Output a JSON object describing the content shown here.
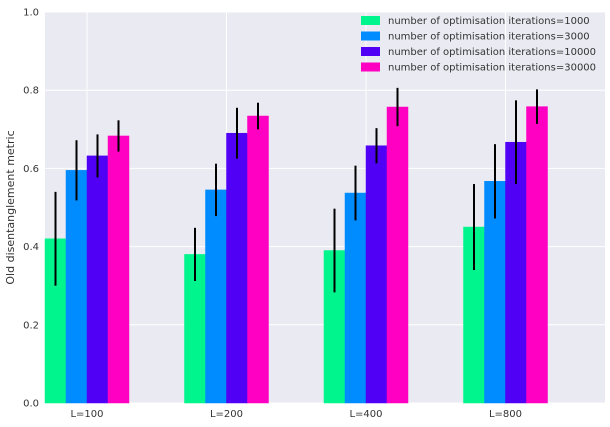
{
  "chart_data": {
    "type": "bar",
    "title": "",
    "xlabel": "",
    "ylabel": "Old disentanglement metric",
    "ylim": [
      0,
      1.0
    ],
    "yticks": [
      "0.0",
      "0.2",
      "0.4",
      "0.6",
      "0.8",
      "1.0"
    ],
    "ytick_values": [
      0,
      0.2,
      0.4,
      0.6,
      0.8,
      1.0
    ],
    "grid": true,
    "legend_position": "top-right",
    "categories": [
      "L=100",
      "L=200",
      "L=400",
      "L=800"
    ],
    "series": [
      {
        "name": "number of optimisation iterations=1000",
        "color": "#00f58c",
        "values": [
          0.42,
          0.38,
          0.39,
          0.45
        ],
        "errors": [
          0.12,
          0.068,
          0.107,
          0.11
        ]
      },
      {
        "name": "number of optimisation iterations=3000",
        "color": "#008cff",
        "values": [
          0.595,
          0.545,
          0.537,
          0.567
        ],
        "errors": [
          0.077,
          0.067,
          0.07,
          0.095
        ]
      },
      {
        "name": "number of optimisation iterations=10000",
        "color": "#5000f5",
        "values": [
          0.632,
          0.69,
          0.658,
          0.667
        ],
        "errors": [
          0.055,
          0.065,
          0.045,
          0.107
        ]
      },
      {
        "name": "number of optimisation iterations=30000",
        "color": "#ff00c3",
        "values": [
          0.683,
          0.734,
          0.757,
          0.758
        ],
        "errors": [
          0.04,
          0.034,
          0.049,
          0.044
        ]
      }
    ]
  }
}
